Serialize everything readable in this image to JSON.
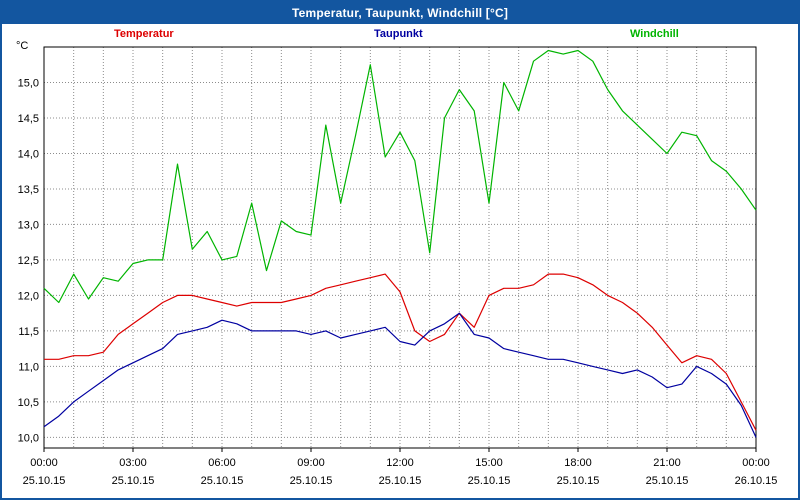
{
  "window": {
    "title": "Temperatur, Taupunkt, Windchill [°C]"
  },
  "chart_data": {
    "type": "line",
    "title": "Temperatur, Taupunkt, Windchill [°C]",
    "xlabel": "",
    "ylabel": "°C",
    "ylim": [
      9.85,
      15.5
    ],
    "xlim_hours": [
      0,
      24
    ],
    "grid": "dotted",
    "grid_color": "#8c8c8c",
    "x_grid_step": 1,
    "legend_position": "top",
    "y_ticks": [
      {
        "value": 10.0,
        "label": "10,0"
      },
      {
        "value": 10.5,
        "label": "10,5"
      },
      {
        "value": 11.0,
        "label": "11,0"
      },
      {
        "value": 11.5,
        "label": "11,5"
      },
      {
        "value": 12.0,
        "label": "12,0"
      },
      {
        "value": 12.5,
        "label": "12,5"
      },
      {
        "value": 13.0,
        "label": "13,0"
      },
      {
        "value": 13.5,
        "label": "13,5"
      },
      {
        "value": 14.0,
        "label": "14,0"
      },
      {
        "value": 14.5,
        "label": "14,5"
      },
      {
        "value": 15.0,
        "label": "15,0"
      }
    ],
    "x_ticks": [
      {
        "hour": 0,
        "time": "00:00",
        "date": "25.10.15"
      },
      {
        "hour": 3,
        "time": "03:00",
        "date": "25.10.15"
      },
      {
        "hour": 6,
        "time": "06:00",
        "date": "25.10.15"
      },
      {
        "hour": 9,
        "time": "09:00",
        "date": "25.10.15"
      },
      {
        "hour": 12,
        "time": "12:00",
        "date": "25.10.15"
      },
      {
        "hour": 15,
        "time": "15:00",
        "date": "25.10.15"
      },
      {
        "hour": 18,
        "time": "18:00",
        "date": "25.10.15"
      },
      {
        "hour": 21,
        "time": "21:00",
        "date": "25.10.15"
      },
      {
        "hour": 24,
        "time": "00:00",
        "date": "26.10.15"
      }
    ],
    "x": [
      0,
      0.5,
      1,
      1.5,
      2,
      2.5,
      3,
      3.5,
      4,
      4.5,
      5,
      5.5,
      6,
      6.5,
      7,
      7.5,
      8,
      8.5,
      9,
      9.5,
      10,
      10.5,
      11,
      11.5,
      12,
      12.5,
      13,
      13.5,
      14,
      14.5,
      15,
      15.5,
      16,
      16.5,
      17,
      17.5,
      18,
      18.5,
      19,
      19.5,
      20,
      20.5,
      21,
      21.5,
      22,
      22.5,
      23,
      23.5,
      24
    ],
    "series": [
      {
        "name": "Temperatur",
        "color": "#dd0000",
        "values": [
          11.1,
          11.1,
          11.15,
          11.15,
          11.2,
          11.45,
          11.6,
          11.75,
          11.9,
          12.0,
          12.0,
          11.95,
          11.9,
          11.85,
          11.9,
          11.9,
          11.9,
          11.95,
          12.0,
          12.1,
          12.15,
          12.2,
          12.25,
          12.3,
          12.05,
          11.5,
          11.35,
          11.45,
          11.75,
          11.55,
          12.0,
          12.1,
          12.1,
          12.15,
          12.3,
          12.3,
          12.25,
          12.15,
          12.0,
          11.9,
          11.75,
          11.55,
          11.3,
          11.05,
          11.15,
          11.1,
          10.9,
          10.5,
          10.1
        ]
      },
      {
        "name": "Taupunkt",
        "color": "#0000a0",
        "values": [
          10.15,
          10.3,
          10.5,
          10.65,
          10.8,
          10.95,
          11.05,
          11.15,
          11.25,
          11.45,
          11.5,
          11.55,
          11.65,
          11.6,
          11.5,
          11.5,
          11.5,
          11.5,
          11.45,
          11.5,
          11.4,
          11.45,
          11.5,
          11.55,
          11.35,
          11.3,
          11.5,
          11.6,
          11.75,
          11.45,
          11.4,
          11.25,
          11.2,
          11.15,
          11.1,
          11.1,
          11.05,
          11.0,
          10.95,
          10.9,
          10.95,
          10.85,
          10.7,
          10.75,
          11.0,
          10.9,
          10.75,
          10.45,
          10.0
        ]
      },
      {
        "name": "Windchill",
        "color": "#00b400",
        "values": [
          12.1,
          11.9,
          12.3,
          11.95,
          12.25,
          12.2,
          12.45,
          12.5,
          12.5,
          13.85,
          12.65,
          12.9,
          12.5,
          12.55,
          13.3,
          12.35,
          13.05,
          12.9,
          12.85,
          14.4,
          13.3,
          14.25,
          15.25,
          13.95,
          14.3,
          13.9,
          12.6,
          14.5,
          14.9,
          14.6,
          13.3,
          15.0,
          14.6,
          15.3,
          15.45,
          15.4,
          15.45,
          15.3,
          14.9,
          14.6,
          14.4,
          14.2,
          14.0,
          14.3,
          14.25,
          13.9,
          13.75,
          13.5,
          13.2
        ]
      }
    ]
  }
}
